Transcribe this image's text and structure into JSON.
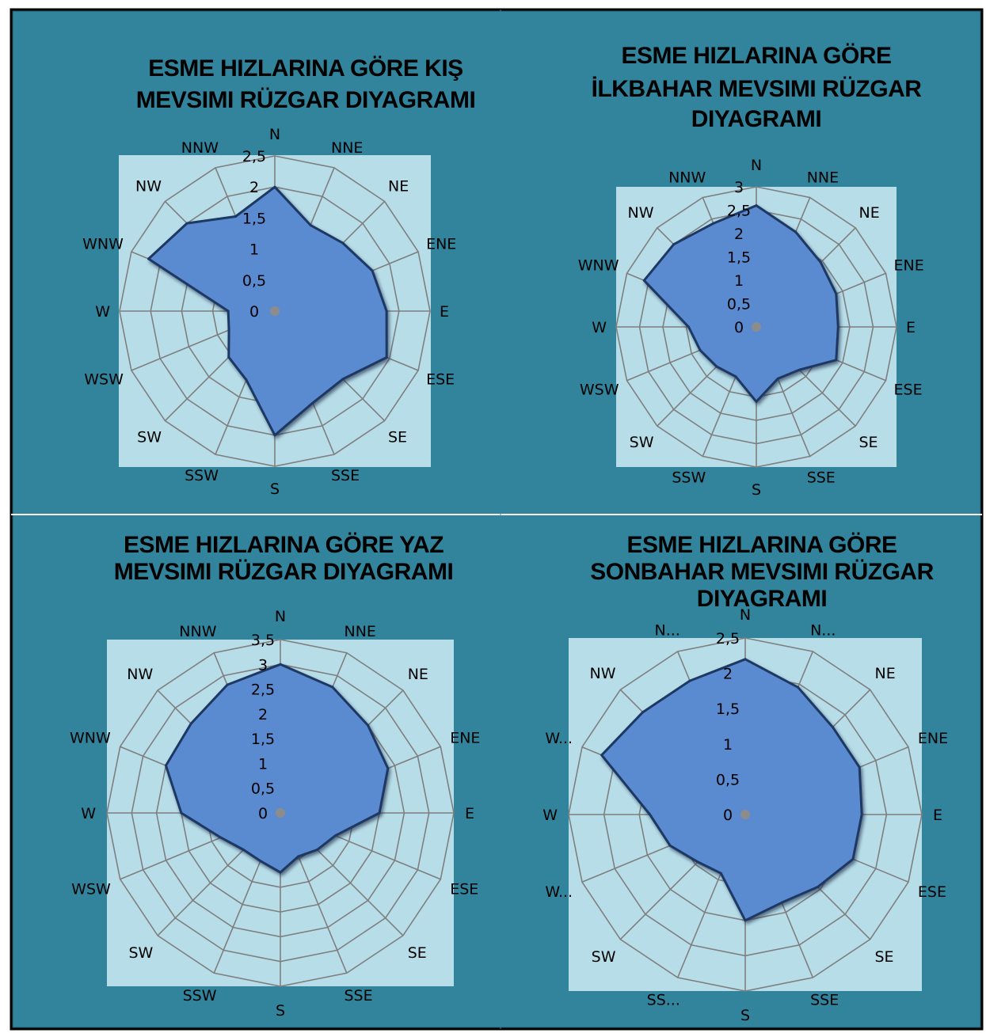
{
  "colors": {
    "page_background": "#ffffff",
    "panel_background": "#31849b",
    "plot_background": "#b7dde8",
    "grid": "#7f7f7f",
    "series_fill": "#5a8ad0",
    "series_edge": "#1f3864"
  },
  "chart_data": [
    {
      "type": "radar",
      "title_lines": [
        "ESME HIZLARINA GÖRE KIŞ",
        "MEVSIMI RÜZGAR DIYAGRAMI"
      ],
      "categories": [
        "N",
        "NNE",
        "NE",
        "ENE",
        "E",
        "ESE",
        "SE",
        "SSE",
        "S",
        "SSW",
        "SW",
        "WSW",
        "W",
        "WNW",
        "NW",
        "NNW"
      ],
      "r_ticks": [
        "0",
        "0,5",
        "1",
        "1,5",
        "2",
        "2,5"
      ],
      "rmax": 2.5,
      "grid": true,
      "values": [
        2.0,
        1.5,
        1.55,
        1.7,
        1.8,
        1.95,
        1.55,
        1.6,
        2.0,
        1.2,
        1.05,
        0.8,
        0.75,
        2.2,
        2.0,
        1.65
      ]
    },
    {
      "type": "radar",
      "title_lines": [
        "ESME HIZLARINA GÖRE",
        "İLKBAHAR MEVSIMI RÜZGAR",
        "DIYAGRAMI"
      ],
      "categories": [
        "N",
        "NNE",
        "NE",
        "ENE",
        "E",
        "ESE",
        "SE",
        "SSE",
        "S",
        "SSW",
        "SW",
        "WSW",
        "W",
        "WNW",
        "NW",
        "NNW"
      ],
      "r_ticks": [
        "0",
        "0,5",
        "1",
        "1,5",
        "2",
        "2,5",
        "3"
      ],
      "rmax": 3.0,
      "grid": true,
      "values": [
        2.6,
        2.2,
        1.95,
        1.85,
        1.75,
        1.85,
        1.3,
        1.2,
        1.6,
        1.15,
        1.2,
        1.3,
        1.45,
        2.6,
        2.5,
        2.4
      ]
    },
    {
      "type": "radar",
      "title_lines": [
        "ESME HIZLARINA GÖRE YAZ",
        "MEVSIMI RÜZGAR DIYAGRAMI"
      ],
      "categories": [
        "N",
        "NNE",
        "NE",
        "ENE",
        "E",
        "ESE",
        "SE",
        "SSE",
        "S",
        "SSW",
        "SW",
        "WSW",
        "W",
        "WNW",
        "NW",
        "NNW"
      ],
      "r_ticks": [
        "0",
        "0,5",
        "1",
        "1,5",
        "2",
        "2,5",
        "3",
        "3,5"
      ],
      "rmax": 3.5,
      "grid": true,
      "values": [
        3.0,
        2.75,
        2.5,
        2.35,
        2.0,
        1.2,
        1.05,
        0.95,
        1.2,
        1.05,
        1.05,
        1.3,
        2.0,
        2.5,
        2.55,
        2.8
      ]
    },
    {
      "type": "radar",
      "title_lines": [
        "ESME HIZLARINA GÖRE",
        "SONBAHAR  MEVSIMI RÜZGAR",
        "DIYAGRAMI"
      ],
      "categories": [
        "N",
        "N...",
        "NE",
        "ENE",
        "E",
        "ESE",
        "SE",
        "SSE",
        "S",
        "SS...",
        "SW",
        "W...",
        "W",
        "W...",
        "NW",
        "N..."
      ],
      "r_ticks": [
        "0",
        "0,5",
        "1",
        "1,5",
        "2",
        "2,5"
      ],
      "rmax": 2.5,
      "grid": true,
      "values": [
        2.2,
        1.95,
        1.75,
        1.75,
        1.65,
        1.65,
        1.45,
        1.35,
        1.5,
        0.9,
        0.95,
        1.15,
        1.35,
        2.2,
        2.05,
        2.05
      ]
    }
  ]
}
